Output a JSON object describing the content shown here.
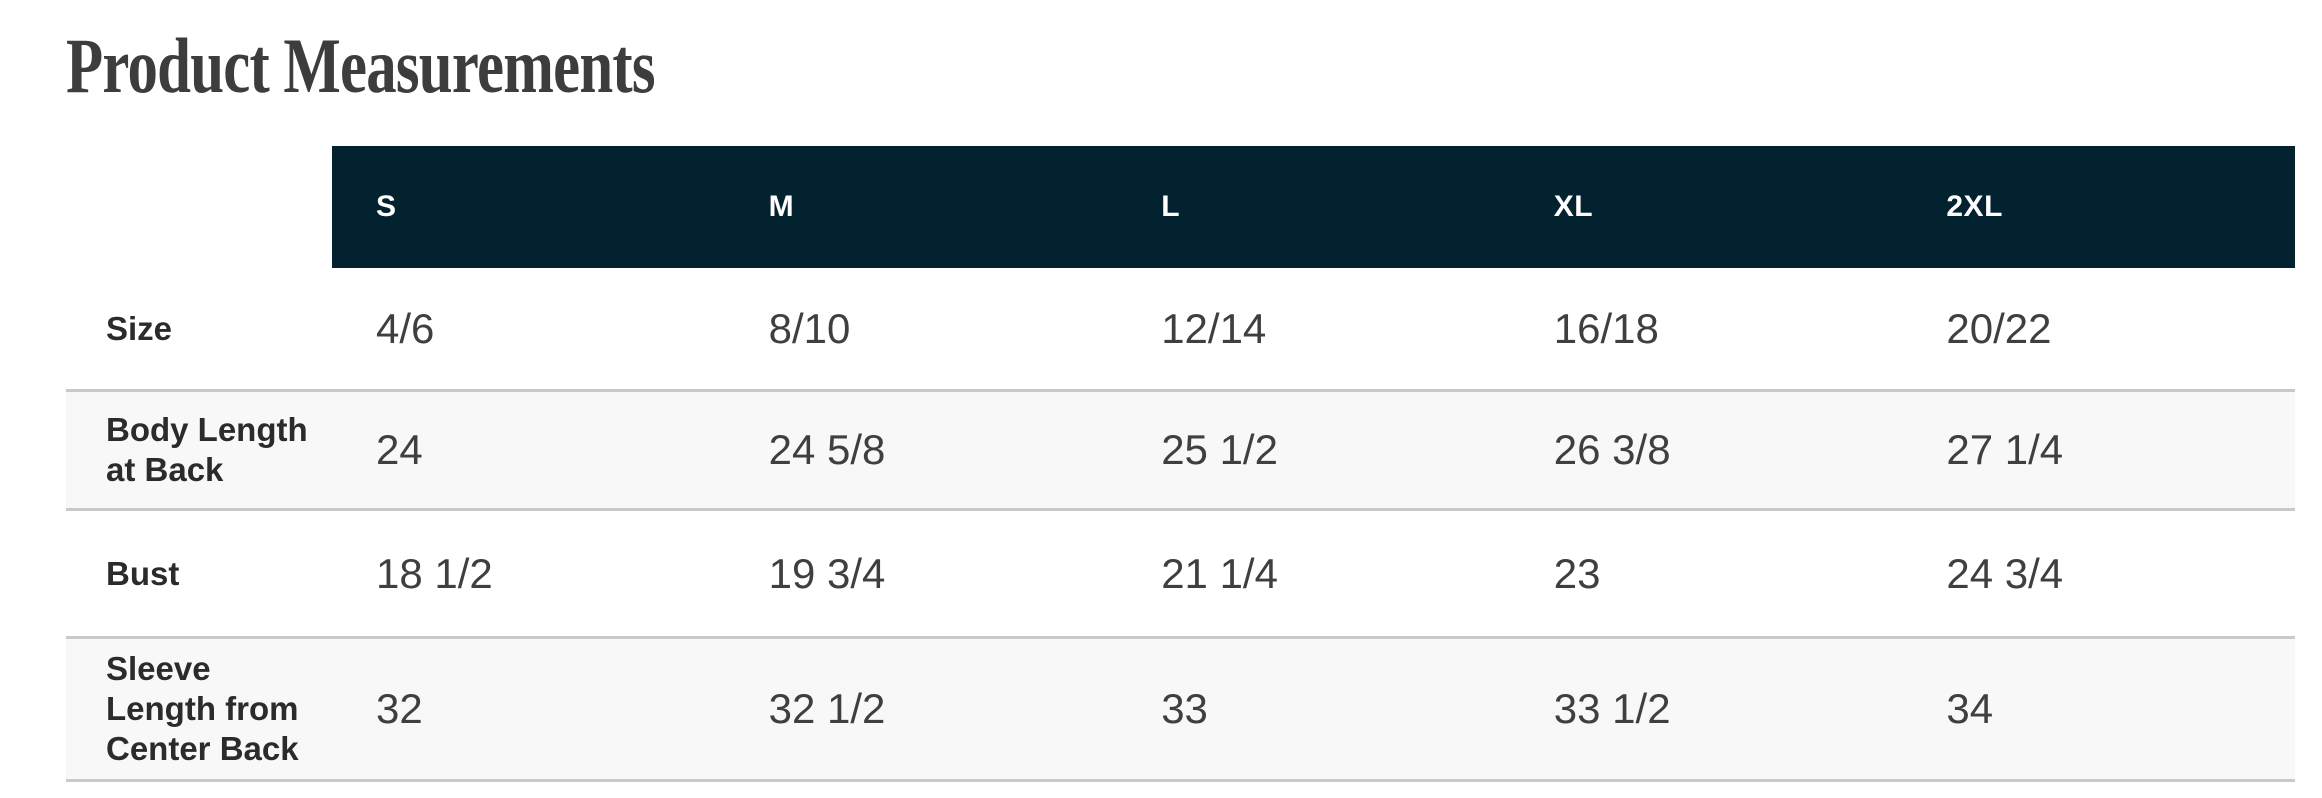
{
  "page": {
    "title": "Product Measurements"
  },
  "table": {
    "columns": [
      "S",
      "M",
      "L",
      "XL",
      "2XL"
    ],
    "rows": [
      {
        "label_lines": [
          "Size"
        ],
        "values": [
          "4/6",
          "8/10",
          "12/14",
          "16/18",
          "20/22"
        ]
      },
      {
        "label_lines": [
          "Body Length",
          "at Back"
        ],
        "values": [
          "24",
          "24 5/8",
          "25 1/2",
          "26 3/8",
          "27 1/4"
        ]
      },
      {
        "label_lines": [
          "Bust"
        ],
        "values": [
          "18 1/2",
          "19 3/4",
          "21 1/4",
          "23",
          "24 3/4"
        ]
      },
      {
        "label_lines": [
          "Sleeve",
          "Length from",
          "Center Back"
        ],
        "values": [
          "32",
          "32 1/2",
          "33",
          "33 1/2",
          "34"
        ]
      }
    ]
  },
  "colors": {
    "header_bg": "#03222f",
    "row_alt_bg": "#f8f8f8",
    "divider": "#c9c9c9",
    "title_text": "#3d3d3d",
    "header_text": "#ffffff",
    "label_text": "#2b2b2b",
    "value_text": "#3f3f3f"
  }
}
